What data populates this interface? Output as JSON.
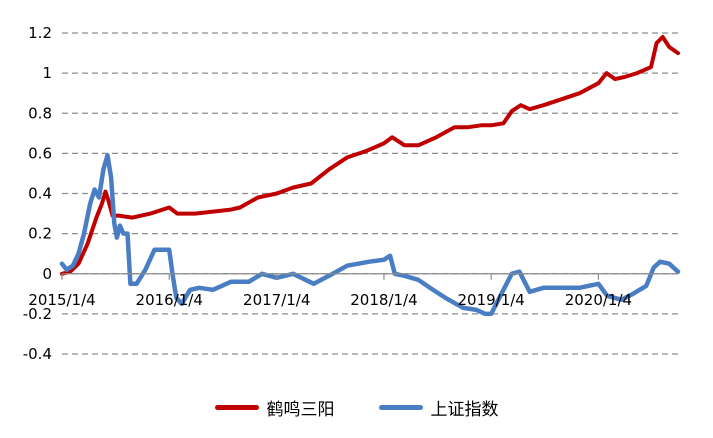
{
  "chart_data": {
    "type": "line",
    "title": "",
    "xlabel": "",
    "ylabel": "",
    "ylim": [
      -0.4,
      1.2
    ],
    "yticks": [
      1.2,
      1,
      0.8,
      0.6,
      0.4,
      0.2,
      0,
      -0.2,
      -0.4
    ],
    "ytick_labels": [
      "1.2",
      "1",
      "0.8",
      "0.6",
      "0.4",
      "0.2",
      "0",
      "-0.2",
      "-0.4"
    ],
    "xlim": [
      "2015-01-04",
      "2020-10-01"
    ],
    "xtick_labels": [
      "2015/1/4",
      "2016/1/4",
      "2017/1/4",
      "2018/1/4",
      "2019/1/4",
      "2020/1/4"
    ],
    "xtick_dates": [
      "2015-01-04",
      "2016-01-04",
      "2017-01-04",
      "2018-01-04",
      "2019-01-04",
      "2020-01-04"
    ],
    "grid": "horizontal dashed",
    "legend": "bottom",
    "series": [
      {
        "name": "鹤鸣三阳",
        "color": "#c00000",
        "points": [
          [
            "2015-01-04",
            0.0
          ],
          [
            "2015-02-01",
            0.01
          ],
          [
            "2015-03-01",
            0.05
          ],
          [
            "2015-04-01",
            0.15
          ],
          [
            "2015-05-01",
            0.28
          ],
          [
            "2015-05-20",
            0.35
          ],
          [
            "2015-06-01",
            0.41
          ],
          [
            "2015-06-12",
            0.36
          ],
          [
            "2015-06-25",
            0.29
          ],
          [
            "2015-07-15",
            0.29
          ],
          [
            "2015-09-01",
            0.28
          ],
          [
            "2015-11-01",
            0.3
          ],
          [
            "2016-01-04",
            0.33
          ],
          [
            "2016-02-01",
            0.3
          ],
          [
            "2016-04-01",
            0.3
          ],
          [
            "2016-06-01",
            0.31
          ],
          [
            "2016-08-01",
            0.32
          ],
          [
            "2016-09-01",
            0.33
          ],
          [
            "2016-11-01",
            0.38
          ],
          [
            "2017-01-04",
            0.4
          ],
          [
            "2017-03-01",
            0.43
          ],
          [
            "2017-05-01",
            0.45
          ],
          [
            "2017-07-01",
            0.52
          ],
          [
            "2017-09-01",
            0.58
          ],
          [
            "2017-11-01",
            0.61
          ],
          [
            "2018-01-04",
            0.65
          ],
          [
            "2018-02-01",
            0.68
          ],
          [
            "2018-03-15",
            0.64
          ],
          [
            "2018-05-01",
            0.64
          ],
          [
            "2018-07-01",
            0.68
          ],
          [
            "2018-09-01",
            0.73
          ],
          [
            "2018-10-15",
            0.73
          ],
          [
            "2018-12-01",
            0.74
          ],
          [
            "2019-01-04",
            0.74
          ],
          [
            "2019-02-15",
            0.75
          ],
          [
            "2019-03-15",
            0.81
          ],
          [
            "2019-04-15",
            0.84
          ],
          [
            "2019-05-15",
            0.82
          ],
          [
            "2019-07-01",
            0.84
          ],
          [
            "2019-09-01",
            0.87
          ],
          [
            "2019-11-01",
            0.9
          ],
          [
            "2020-01-04",
            0.95
          ],
          [
            "2020-02-01",
            1.0
          ],
          [
            "2020-03-01",
            0.97
          ],
          [
            "2020-04-01",
            0.98
          ],
          [
            "2020-05-15",
            1.0
          ],
          [
            "2020-07-01",
            1.03
          ],
          [
            "2020-07-20",
            1.15
          ],
          [
            "2020-08-10",
            1.18
          ],
          [
            "2020-09-01",
            1.13
          ],
          [
            "2020-10-01",
            1.1
          ]
        ]
      },
      {
        "name": "上证指数",
        "color": "#4a7ec4",
        "points": [
          [
            "2015-01-04",
            0.05
          ],
          [
            "2015-01-20",
            0.02
          ],
          [
            "2015-02-10",
            0.04
          ],
          [
            "2015-03-01",
            0.1
          ],
          [
            "2015-03-20",
            0.2
          ],
          [
            "2015-04-10",
            0.35
          ],
          [
            "2015-04-25",
            0.42
          ],
          [
            "2015-05-10",
            0.38
          ],
          [
            "2015-05-25",
            0.52
          ],
          [
            "2015-06-08",
            0.59
          ],
          [
            "2015-06-20",
            0.48
          ],
          [
            "2015-07-01",
            0.25
          ],
          [
            "2015-07-10",
            0.18
          ],
          [
            "2015-07-20",
            0.24
          ],
          [
            "2015-08-01",
            0.2
          ],
          [
            "2015-08-15",
            0.2
          ],
          [
            "2015-08-25",
            -0.05
          ],
          [
            "2015-09-15",
            -0.05
          ],
          [
            "2015-10-15",
            0.02
          ],
          [
            "2015-11-15",
            0.12
          ],
          [
            "2015-12-15",
            0.12
          ],
          [
            "2016-01-04",
            0.12
          ],
          [
            "2016-01-15",
            0.0
          ],
          [
            "2016-01-28",
            -0.12
          ],
          [
            "2016-02-15",
            -0.15
          ],
          [
            "2016-03-15",
            -0.08
          ],
          [
            "2016-04-15",
            -0.07
          ],
          [
            "2016-06-01",
            -0.08
          ],
          [
            "2016-08-01",
            -0.04
          ],
          [
            "2016-10-01",
            -0.04
          ],
          [
            "2016-11-15",
            0.0
          ],
          [
            "2017-01-04",
            -0.02
          ],
          [
            "2017-03-01",
            0.0
          ],
          [
            "2017-05-10",
            -0.05
          ],
          [
            "2017-07-01",
            -0.01
          ],
          [
            "2017-09-01",
            0.04
          ],
          [
            "2017-11-15",
            0.06
          ],
          [
            "2018-01-04",
            0.07
          ],
          [
            "2018-01-25",
            0.09
          ],
          [
            "2018-02-10",
            0.0
          ],
          [
            "2018-03-15",
            -0.01
          ],
          [
            "2018-05-01",
            -0.03
          ],
          [
            "2018-06-20",
            -0.08
          ],
          [
            "2018-08-01",
            -0.12
          ],
          [
            "2018-10-01",
            -0.17
          ],
          [
            "2018-11-15",
            -0.18
          ],
          [
            "2018-12-15",
            -0.2
          ],
          [
            "2019-01-04",
            -0.2
          ],
          [
            "2019-02-15",
            -0.08
          ],
          [
            "2019-03-15",
            0.0
          ],
          [
            "2019-04-10",
            0.01
          ],
          [
            "2019-05-15",
            -0.09
          ],
          [
            "2019-07-01",
            -0.07
          ],
          [
            "2019-09-01",
            -0.07
          ],
          [
            "2019-11-01",
            -0.07
          ],
          [
            "2020-01-04",
            -0.05
          ],
          [
            "2020-02-03",
            -0.11
          ],
          [
            "2020-03-23",
            -0.13
          ],
          [
            "2020-05-01",
            -0.1
          ],
          [
            "2020-06-15",
            -0.06
          ],
          [
            "2020-07-10",
            0.03
          ],
          [
            "2020-08-01",
            0.06
          ],
          [
            "2020-09-01",
            0.05
          ],
          [
            "2020-10-01",
            0.01
          ]
        ]
      }
    ]
  }
}
